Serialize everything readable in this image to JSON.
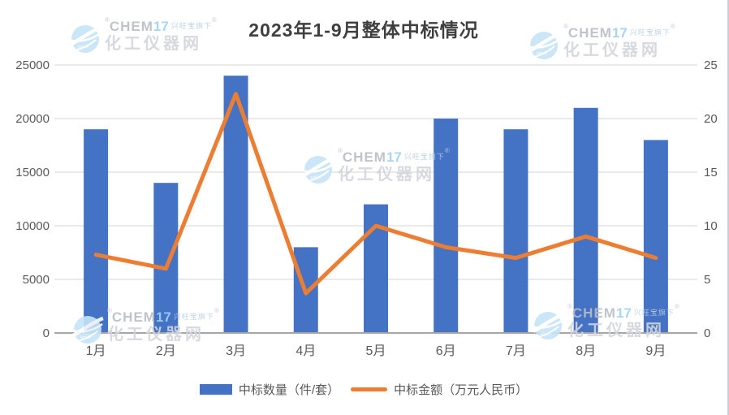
{
  "title": "2023年1-9月整体中标情况",
  "chart_data": {
    "type": "bar+line combo",
    "title": "2023年1-9月整体中标情况",
    "categories": [
      "1月",
      "2月",
      "3月",
      "4月",
      "5月",
      "6月",
      "7月",
      "8月",
      "9月"
    ],
    "series": [
      {
        "name": "中标数量（件/套）",
        "type": "bar",
        "axis": "left",
        "color": "#4472C4",
        "values": [
          19000,
          14000,
          24000,
          8000,
          12000,
          20000,
          19000,
          21000,
          18000
        ]
      },
      {
        "name": "中标金额（万元人民币）",
        "type": "line",
        "axis": "right",
        "color": "#ED7D31",
        "values": [
          7.3,
          6,
          22.3,
          3.7,
          10,
          8,
          7,
          9,
          7
        ]
      }
    ],
    "left_axis": {
      "min": 0,
      "max": 25000,
      "ticks": [
        0,
        5000,
        10000,
        15000,
        20000,
        25000
      ]
    },
    "right_axis": {
      "min": 0,
      "max": 25,
      "ticks": [
        0,
        5,
        10,
        15,
        20,
        25
      ]
    },
    "xlabel": "",
    "ylabel": "",
    "grid": true,
    "legend_position": "bottom"
  },
  "legend": {
    "items": [
      {
        "label": "中标数量（件/套）",
        "color": "#4472C4",
        "shape": "rect"
      },
      {
        "label": "中标金额（万元人民币）",
        "color": "#ED7D31",
        "shape": "line"
      }
    ]
  },
  "watermark": {
    "registered": "®",
    "brand": "CHEM",
    "brand_number": "17",
    "tagline": "兴旺宝旗下",
    "site_name": "化工仪器网"
  },
  "colors": {
    "bar": "#4472C4",
    "line": "#ED7D31",
    "gridline": "#DEDEDE",
    "axis_line": "#A6A6A6",
    "axis_text": "#595959",
    "title_text": "#3F3F3F",
    "background": "#FFFFFF"
  }
}
